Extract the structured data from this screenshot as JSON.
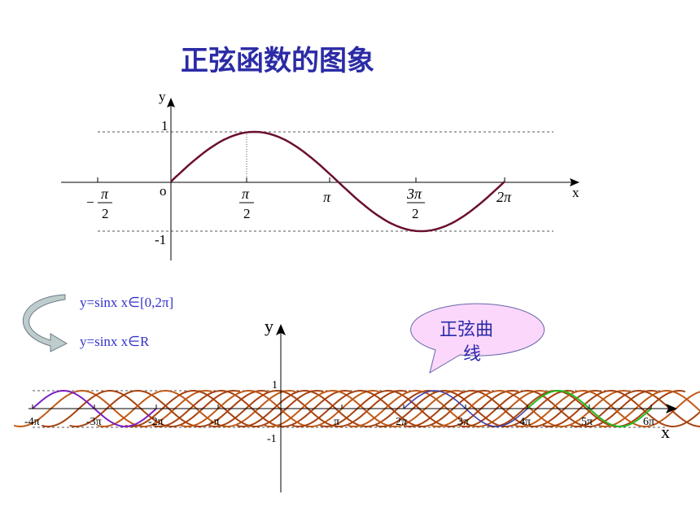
{
  "title": "正弦函数的图象",
  "top_graph": {
    "y_label": "y",
    "x_label": "x",
    "origin": "o",
    "one": "1",
    "minus_one": "-1",
    "neg_half_pi": {
      "sign": "−",
      "num": "π",
      "den": "2"
    },
    "half_pi": {
      "num": "π",
      "den": "2"
    },
    "pi": "π",
    "three_half_pi": {
      "num": "3π",
      "den": "2"
    },
    "two_pi": "2π"
  },
  "notes": [
    "y=sinx   x∈[0,2π]",
    "y=sinx   x∈R"
  ],
  "bottom_graph": {
    "y_label": "y",
    "x_label": "x",
    "one": "1",
    "minus_one": "-1",
    "ticks": [
      "-4π",
      "-3π",
      "-2π",
      "-π",
      "π",
      "2π",
      "3π",
      "4π",
      "5π",
      "6π"
    ]
  },
  "callout": {
    "lines": [
      "正弦曲",
      "线"
    ]
  }
}
